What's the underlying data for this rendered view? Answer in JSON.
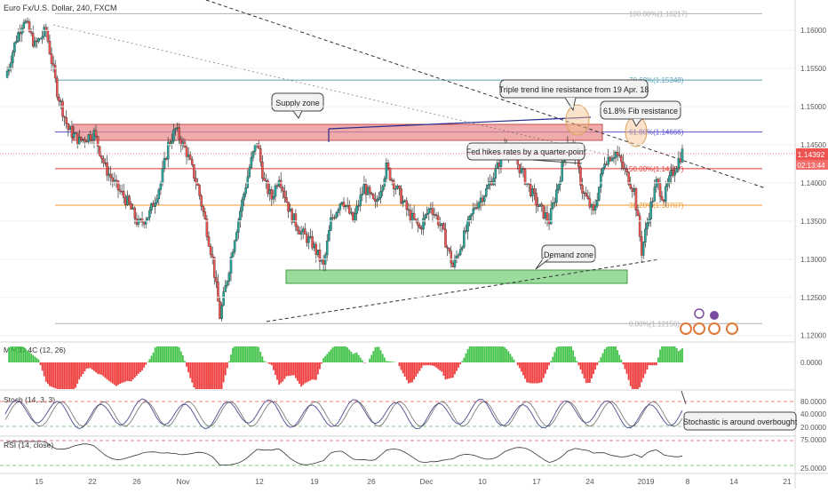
{
  "header": {
    "symbol_title": "Euro Fx/U.S. Dollar, 240, FXCM"
  },
  "price": {
    "axis_ticks": [
      "1.16000",
      "1.15500",
      "1.15000",
      "1.14500",
      "1.14000",
      "1.13500",
      "1.13000",
      "1.12500",
      "1.12000"
    ],
    "current_price": "1.14392",
    "countdown": "02:13:44",
    "current_price_color": "#ef5350"
  },
  "fib_levels": [
    {
      "label": "100.00%(1.16217)",
      "value": 1.16217,
      "color": "#b0b0b0"
    },
    {
      "label": "78.60%(1.15348)",
      "value": 1.15348,
      "color": "#5ba3b5"
    },
    {
      "label": "61.80%(1.14666)",
      "value": 1.14666,
      "color": "#5a4fcf"
    },
    {
      "label": "50.00%(1.14187)",
      "value": 1.14187,
      "color": "#e53935"
    },
    {
      "label": "38.20%(1.13707)",
      "value": 1.13707,
      "color": "#f29a2e"
    },
    {
      "label": "0.00%(1.12156)",
      "value": 1.12156,
      "color": "#b0b0b0"
    }
  ],
  "annotations": [
    "Supply zone",
    "Triple trend line resistance from 19 Apr. 18",
    "61.8% Fib resistance",
    "Fed hikes rates by a quarter-point",
    "Demand zone",
    "Stochastic is around overbought"
  ],
  "x_ticks": [
    "15",
    "22",
    "26",
    "Nov",
    "12",
    "19",
    "26",
    "Dec",
    "10",
    "17",
    "24",
    "2019",
    "8",
    "14",
    "21"
  ],
  "indicators": {
    "macd": {
      "label": "MACD 4C (12, 26)",
      "ticks": [
        "0.0000"
      ]
    },
    "stoch": {
      "label": "Stoch (14, 3, 3)",
      "ticks": [
        "80.0000",
        "40.0000",
        "20.0000"
      ]
    },
    "rsi": {
      "label": "RSI (14, close)",
      "ticks": [
        "75.0000",
        "25.0000"
      ]
    }
  },
  "colors": {
    "up": "#26a69a",
    "down": "#ef5350",
    "supply": "#e57373",
    "demand": "#66bb6a"
  },
  "chart_data": {
    "type": "candlestick",
    "title": "Euro Fx/U.S. Dollar, 240, FXCM",
    "y_range": [
      1.1195,
      1.1635
    ],
    "close_path": [
      [
        0,
        1.1538
      ],
      [
        3,
        1.159
      ],
      [
        5,
        1.1615
      ],
      [
        8,
        1.158
      ],
      [
        11,
        1.16
      ],
      [
        14,
        1.152
      ],
      [
        17,
        1.147
      ],
      [
        20,
        1.1455
      ],
      [
        24,
        1.1465
      ],
      [
        27,
        1.142
      ],
      [
        30,
        1.1395
      ],
      [
        33,
        1.1375
      ],
      [
        36,
        1.1345
      ],
      [
        39,
        1.136
      ],
      [
        42,
        1.14
      ],
      [
        44,
        1.145
      ],
      [
        46,
        1.147
      ],
      [
        49,
        1.144
      ],
      [
        52,
        1.1395
      ],
      [
        54,
        1.135
      ],
      [
        56,
        1.13
      ],
      [
        58,
        1.1225
      ],
      [
        60,
        1.1275
      ],
      [
        62,
        1.133
      ],
      [
        64,
        1.1375
      ],
      [
        66,
        1.142
      ],
      [
        68,
        1.1455
      ],
      [
        70,
        1.14
      ],
      [
        72,
        1.138
      ],
      [
        74,
        1.141
      ],
      [
        77,
        1.136
      ],
      [
        80,
        1.1335
      ],
      [
        83,
        1.132
      ],
      [
        86,
        1.129
      ],
      [
        88,
        1.135
      ],
      [
        91,
        1.138
      ],
      [
        94,
        1.135
      ],
      [
        97,
        1.1395
      ],
      [
        100,
        1.137
      ],
      [
        103,
        1.142
      ],
      [
        106,
        1.139
      ],
      [
        109,
        1.136
      ],
      [
        112,
        1.134
      ],
      [
        115,
        1.137
      ],
      [
        118,
        1.134
      ],
      [
        121,
        1.129
      ],
      [
        124,
        1.133
      ],
      [
        127,
        1.137
      ],
      [
        130,
        1.139
      ],
      [
        133,
        1.142
      ],
      [
        135,
        1.145
      ],
      [
        138,
        1.143
      ],
      [
        141,
        1.14
      ],
      [
        144,
        1.137
      ],
      [
        147,
        1.135
      ],
      [
        150,
        1.141
      ],
      [
        152,
        1.1455
      ],
      [
        154,
        1.144
      ],
      [
        156,
        1.139
      ],
      [
        159,
        1.136
      ],
      [
        162,
        1.143
      ],
      [
        165,
        1.144
      ],
      [
        167,
        1.142
      ],
      [
        170,
        1.139
      ],
      [
        172,
        1.131
      ],
      [
        174,
        1.136
      ],
      [
        176,
        1.14
      ],
      [
        178,
        1.138
      ],
      [
        180,
        1.141
      ],
      [
        183,
        1.144
      ]
    ]
  }
}
